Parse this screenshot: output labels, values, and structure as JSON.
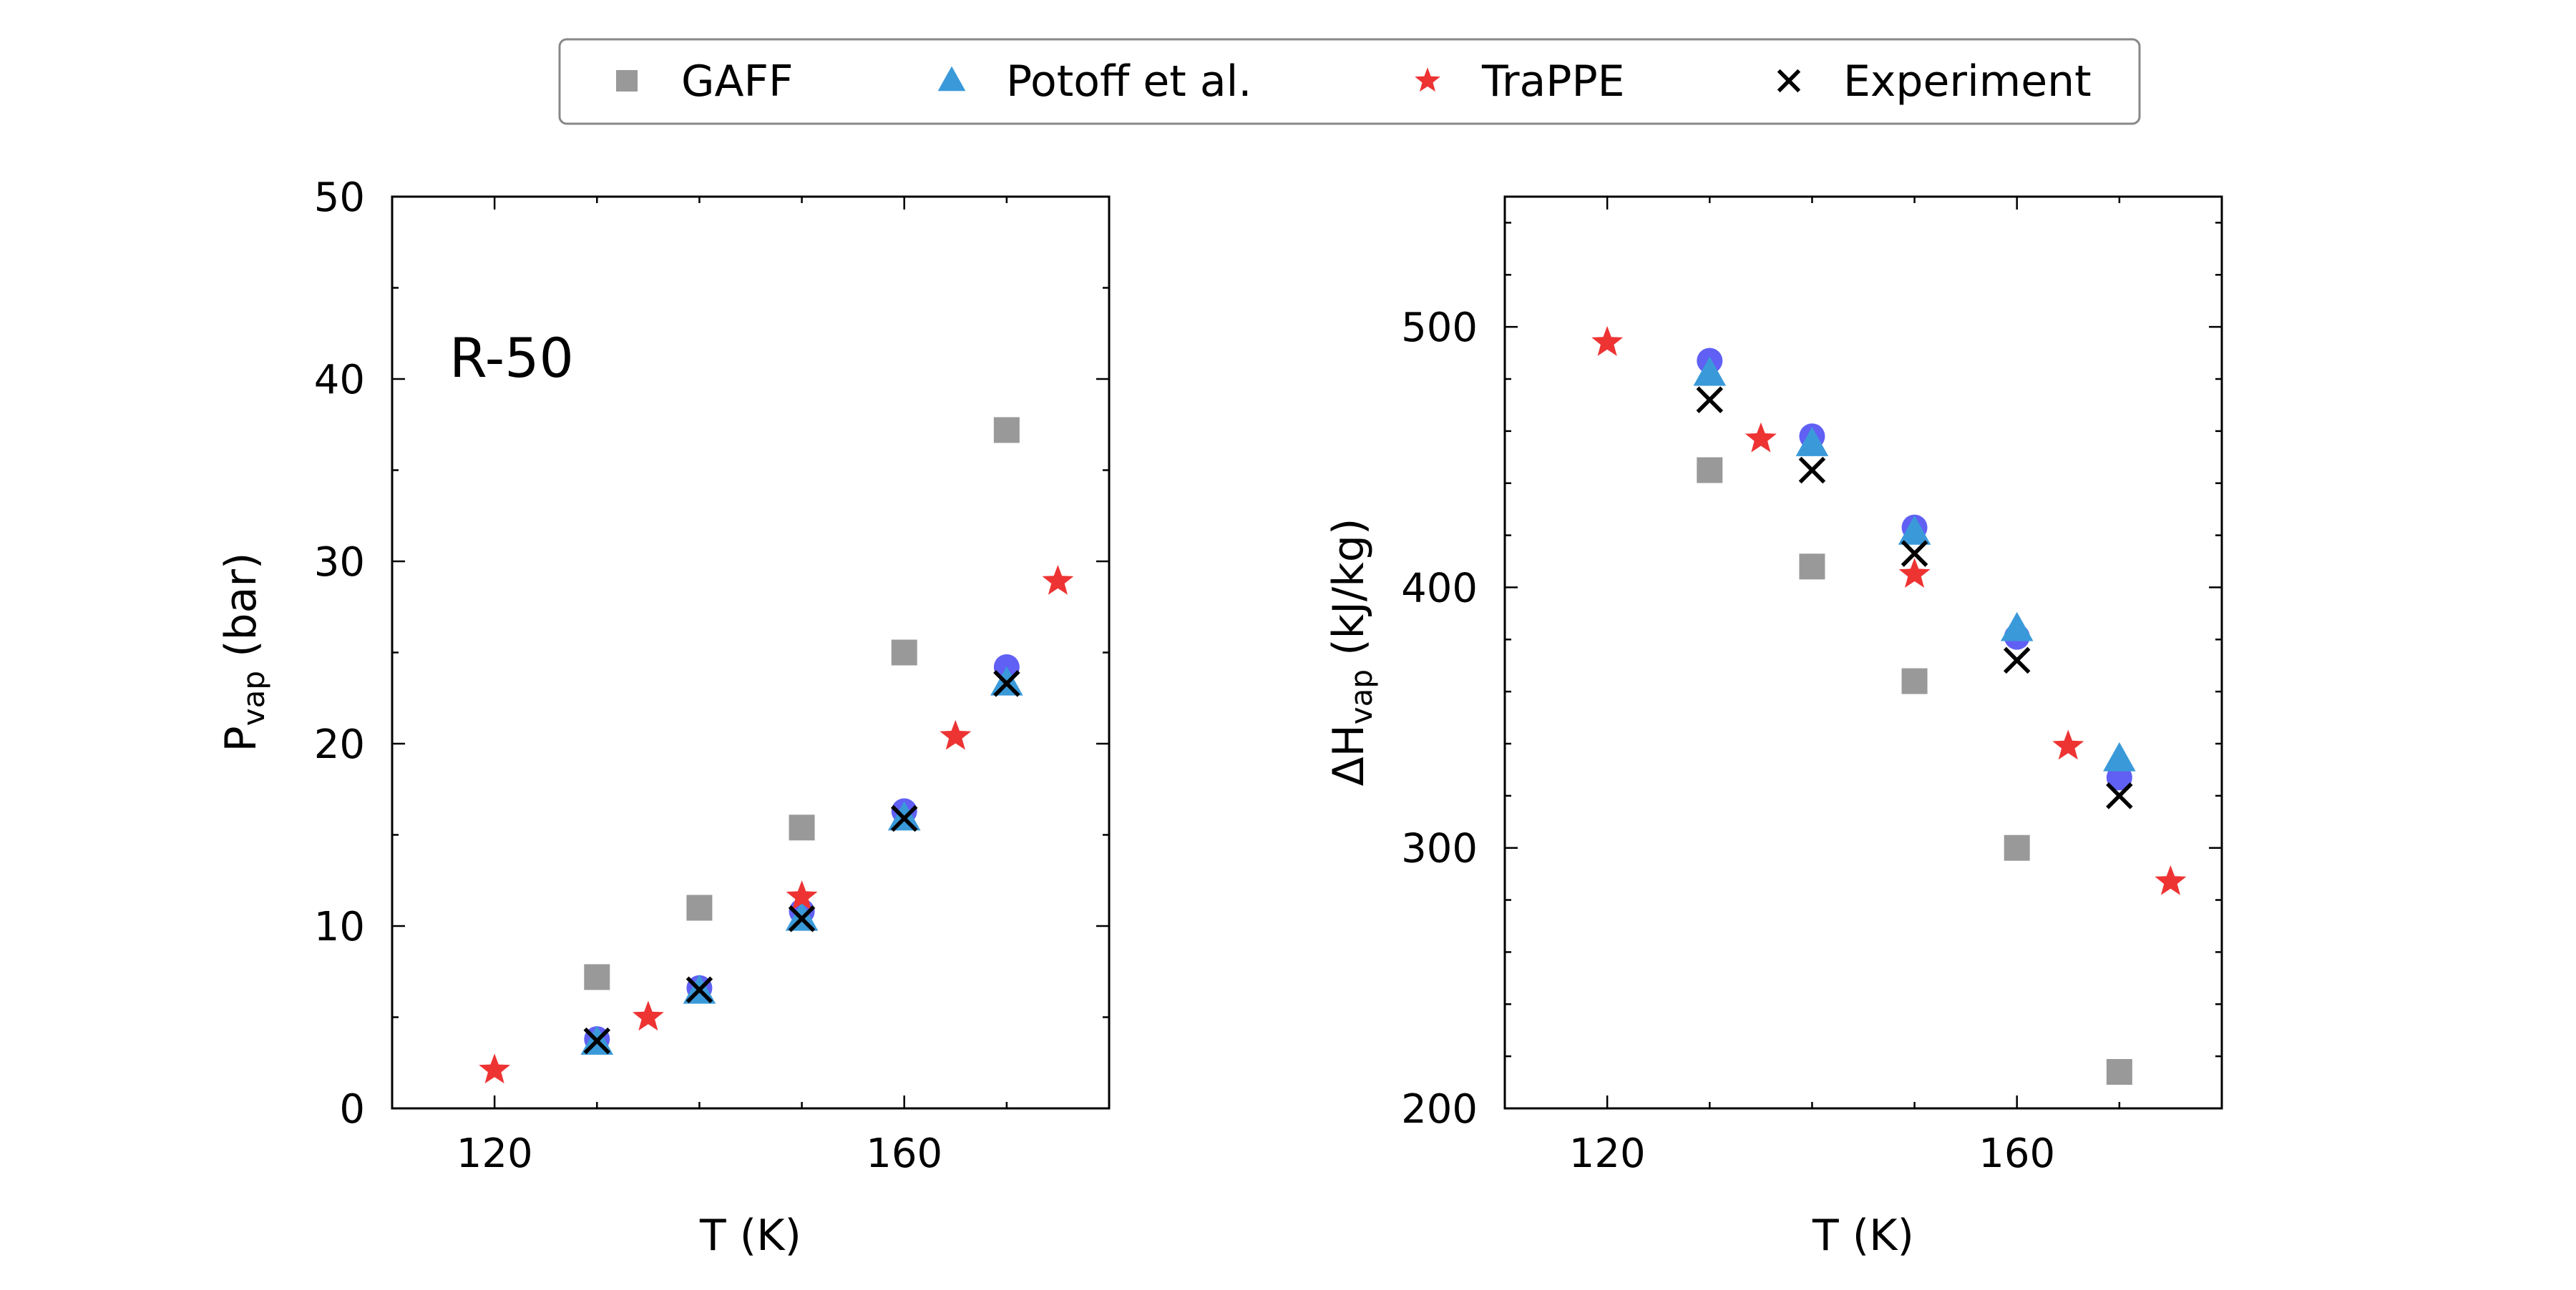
{
  "legend": {
    "placement": "top-center",
    "entries": [
      {
        "name": "GAFF",
        "marker": "square",
        "color": "#999999"
      },
      {
        "name": "Potoff et al.",
        "marker": "triangle",
        "color": "#3a9ad9"
      },
      {
        "name": "TraPPE",
        "marker": "star",
        "color": "#ee3333"
      },
      {
        "name": "Experiment",
        "marker": "x",
        "color": "#000000"
      }
    ]
  },
  "chart_data": [
    {
      "type": "scatter",
      "annotation": "R-50",
      "xlabel": "T (K)",
      "ylabel_main": "P",
      "ylabel_sub": "vap",
      "ylabel_tail": " (bar)",
      "xlim": [
        110,
        180
      ],
      "ylim": [
        0,
        50
      ],
      "xticks": [
        120,
        160
      ],
      "yticks": [
        0,
        10,
        20,
        30,
        40,
        50
      ],
      "grid": false,
      "series": [
        {
          "name": "GAFF",
          "x": [
            130,
            140,
            150,
            160,
            170
          ],
          "y": [
            7.2,
            11.0,
            15.4,
            25.0,
            37.2
          ]
        },
        {
          "name": "Potoff et al.",
          "x": [
            130,
            140,
            150,
            160,
            170
          ],
          "y": [
            3.6,
            6.4,
            10.4,
            15.9,
            23.3
          ]
        },
        {
          "name": "TraPPE",
          "x": [
            120,
            135,
            150,
            165,
            175
          ],
          "y": [
            2.1,
            5.0,
            11.6,
            20.4,
            28.9
          ]
        },
        {
          "name": "Experiment",
          "x": [
            130,
            140,
            150,
            160,
            170
          ],
          "y": [
            3.7,
            6.5,
            10.4,
            15.9,
            23.3
          ]
        },
        {
          "x": [
            130,
            140,
            150,
            160,
            170
          ],
          "y": [
            3.8,
            6.6,
            10.8,
            16.3,
            24.2
          ]
        }
      ]
    },
    {
      "type": "scatter",
      "xlabel": "T (K)",
      "ylabel_main": "ΔH",
      "ylabel_sub": "vap",
      "ylabel_tail": " (kJ/kg)",
      "xlim": [
        110,
        180
      ],
      "ylim": [
        200,
        550
      ],
      "xticks": [
        120,
        160
      ],
      "yticks": [
        200,
        300,
        400,
        500
      ],
      "grid": false,
      "series": [
        {
          "name": "GAFF",
          "x": [
            130,
            140,
            150,
            160,
            170
          ],
          "y": [
            445,
            408,
            364,
            300,
            214
          ]
        },
        {
          "name": "Potoff et al.",
          "x": [
            130,
            140,
            150,
            160,
            170
          ],
          "y": [
            482,
            455,
            421,
            384,
            334
          ]
        },
        {
          "name": "TraPPE",
          "x": [
            120,
            135,
            150,
            165,
            175
          ],
          "y": [
            494,
            457,
            405,
            339,
            287
          ]
        },
        {
          "name": "Experiment",
          "x": [
            130,
            140,
            150,
            160,
            170
          ],
          "y": [
            472,
            445,
            413,
            372,
            320
          ]
        },
        {
          "x": [
            130,
            140,
            150,
            160,
            170
          ],
          "y": [
            487,
            458,
            423,
            381,
            327
          ]
        }
      ]
    }
  ]
}
